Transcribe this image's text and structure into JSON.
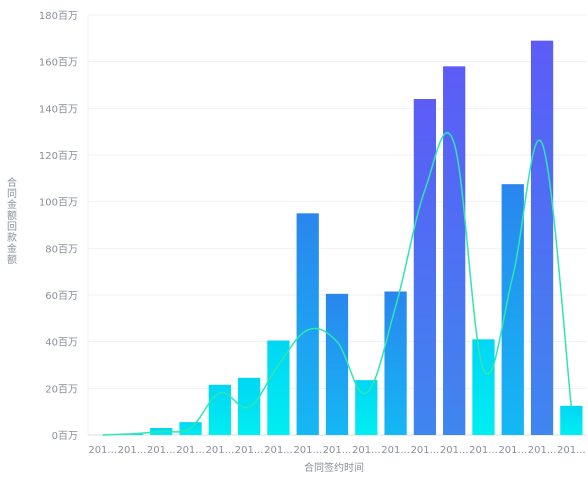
{
  "chart_data": {
    "type": "bar",
    "xlabel": "合同签约时间",
    "ylabel_vertical": "合同金额回款金额",
    "ylabel": "合同金额回款金额",
    "ylim": [
      0,
      180
    ],
    "yticks": [
      "0百万",
      "20百万",
      "40百万",
      "60百万",
      "80百万",
      "100百万",
      "120百万",
      "140百万",
      "160百万",
      "180百万"
    ],
    "ytick_values": [
      0,
      20,
      40,
      60,
      80,
      100,
      120,
      140,
      160,
      180
    ],
    "categories": [
      "201...",
      "201...",
      "201...",
      "201...",
      "201...",
      "201...",
      "201...",
      "201...",
      "201...",
      "201...",
      "201...",
      "201...",
      "201...",
      "201...",
      "201...",
      "201...",
      "201..."
    ],
    "series": [
      {
        "type": "bar",
        "values": [
          0,
          0.5,
          3,
          5.5,
          21.5,
          24.5,
          40.5,
          95,
          60.5,
          23.5,
          61.5,
          144,
          158,
          41,
          107.5,
          169,
          12.5
        ]
      },
      {
        "type": "line",
        "values": [
          0,
          0.5,
          1.5,
          3,
          18,
          12,
          30,
          45,
          40,
          18,
          55,
          105,
          125,
          28,
          68,
          125,
          12
        ]
      }
    ],
    "grid": true,
    "colors": {
      "bar_low": "#00e5f0",
      "bar_mid": "#1aa6f0",
      "bar_high": "#5b5cf6",
      "line": "#2ee6b0",
      "grid": "#eef1f5",
      "axis_text": "#8a8f99"
    }
  }
}
